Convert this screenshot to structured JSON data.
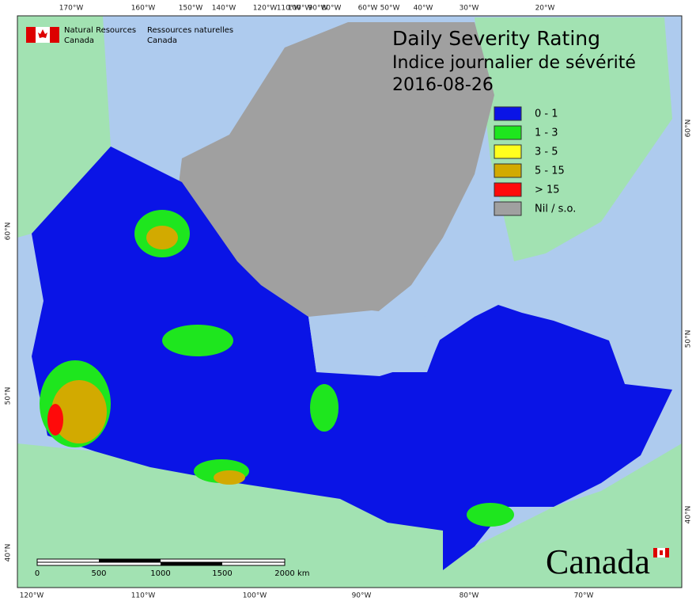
{
  "header": {
    "title": "Daily Severity Rating",
    "subtitle": "Indice journalier de sévérité",
    "date": "2016-08-26"
  },
  "agency": {
    "english": [
      "Natural Resources",
      "Canada"
    ],
    "french": [
      "Ressources naturelles",
      "Canada"
    ]
  },
  "legend": [
    {
      "label": "0 - 1",
      "color": "#0a14e6"
    },
    {
      "label": "1 - 3",
      "color": "#1ee61e"
    },
    {
      "label": "3 - 5",
      "color": "#ffff1e"
    },
    {
      "label": "5 - 15",
      "color": "#d2aa00"
    },
    {
      "label": "> 15",
      "color": "#ff0a0a"
    },
    {
      "label": "Nil / s.o.",
      "color": "#a0a0a0"
    }
  ],
  "graticule": {
    "top": [
      "170°W",
      "160°W",
      "150°W",
      "140°W",
      "120°W",
      "110°W",
      "100°W",
      "90°W",
      "80°W",
      "60°W",
      "50°W",
      "40°W",
      "30°W",
      "20°W"
    ],
    "bottom": [
      "120°W",
      "110°W",
      "100°W",
      "90°W",
      "80°W",
      "70°W"
    ],
    "left": [
      "60°N",
      "50°N",
      "40°N"
    ],
    "right": [
      "60°N",
      "50°N",
      "40°N"
    ]
  },
  "scale_bar": {
    "labels": [
      "0",
      "500",
      "1000",
      "1500",
      "2000"
    ],
    "unit": "km"
  },
  "wordmark": "Canada"
}
